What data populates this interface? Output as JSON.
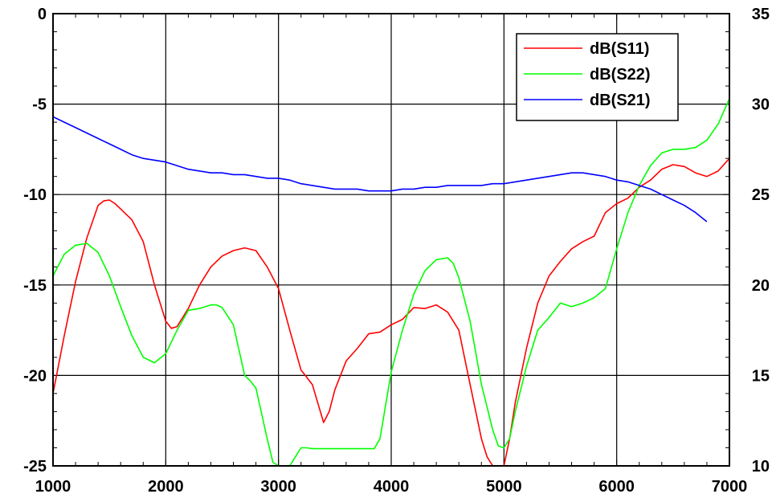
{
  "chart_data": {
    "type": "line",
    "title": "",
    "xlabel": "",
    "ylabel": "",
    "y2label": "",
    "xlim": [
      1000,
      7000
    ],
    "ylim": [
      -25,
      0
    ],
    "y2lim": [
      10,
      35
    ],
    "grid": true,
    "legend_position": "top-right",
    "x_ticks": [
      1000,
      2000,
      3000,
      4000,
      5000,
      6000,
      7000
    ],
    "x_tick_labels": [
      "1000",
      "2000",
      "3000",
      "4000",
      "5000",
      "6000",
      "7000"
    ],
    "y_ticks": [
      0,
      -5,
      -10,
      -15,
      -20,
      -25
    ],
    "y_tick_labels": [
      "0",
      "-5",
      "-10",
      "-15",
      "-20",
      "-25"
    ],
    "y2_ticks": [
      35,
      30,
      25,
      20,
      15,
      10
    ],
    "y2_tick_labels": [
      "35",
      "30",
      "25",
      "20",
      "15",
      "10"
    ],
    "series": [
      {
        "name": "dB(S11)",
        "color": "#ff0000",
        "axis": "left",
        "x": [
          1000,
          1100,
          1200,
          1300,
          1400,
          1450,
          1500,
          1550,
          1600,
          1700,
          1800,
          1900,
          2000,
          2050,
          2100,
          2200,
          2300,
          2400,
          2500,
          2600,
          2700,
          2800,
          2900,
          3000,
          3100,
          3200,
          3300,
          3400,
          3450,
          3500,
          3600,
          3700,
          3800,
          3900,
          4000,
          4100,
          4200,
          4300,
          4400,
          4500,
          4600,
          4700,
          4800,
          4850,
          4900,
          5000,
          5050,
          5100,
          5200,
          5300,
          5400,
          5500,
          5600,
          5700,
          5800,
          5900,
          6000,
          6100,
          6200,
          6300,
          6400,
          6500,
          6600,
          6700,
          6800,
          6900,
          7000
        ],
        "y": [
          -21.0,
          -17.8,
          -14.8,
          -12.4,
          -10.6,
          -10.35,
          -10.3,
          -10.5,
          -10.8,
          -11.4,
          -12.6,
          -15.0,
          -17.0,
          -17.4,
          -17.3,
          -16.3,
          -15.0,
          -14.0,
          -13.4,
          -13.1,
          -12.95,
          -13.1,
          -14.0,
          -15.2,
          -17.5,
          -19.7,
          -20.5,
          -22.6,
          -22.0,
          -20.8,
          -19.2,
          -18.5,
          -17.7,
          -17.6,
          -17.2,
          -16.9,
          -16.25,
          -16.3,
          -16.1,
          -16.5,
          -17.5,
          -20.5,
          -23.5,
          -24.5,
          -25.0,
          -25.0,
          -23.5,
          -21.5,
          -18.5,
          -16.0,
          -14.5,
          -13.7,
          -13.0,
          -12.6,
          -12.3,
          -11.0,
          -10.5,
          -10.2,
          -9.6,
          -9.2,
          -8.6,
          -8.35,
          -8.45,
          -8.8,
          -9.0,
          -8.7,
          -8.0
        ]
      },
      {
        "name": "dB(S22)",
        "color": "#00ff00",
        "axis": "left",
        "x": [
          1000,
          1100,
          1200,
          1300,
          1400,
          1500,
          1600,
          1700,
          1800,
          1900,
          2000,
          2100,
          2200,
          2300,
          2400,
          2450,
          2500,
          2600,
          2700,
          2750,
          2800,
          2900,
          2950,
          3000,
          3050,
          3100,
          3150,
          3200,
          3250,
          3300,
          3400,
          3500,
          3600,
          3700,
          3800,
          3850,
          3900,
          4000,
          4100,
          4200,
          4300,
          4400,
          4500,
          4550,
          4600,
          4700,
          4800,
          4900,
          4950,
          5000,
          5050,
          5100,
          5200,
          5300,
          5400,
          5500,
          5600,
          5700,
          5800,
          5900,
          6000,
          6100,
          6200,
          6300,
          6400,
          6500,
          6600,
          6700,
          6800,
          6900,
          7000
        ],
        "y": [
          -14.5,
          -13.3,
          -12.8,
          -12.7,
          -13.2,
          -14.5,
          -16.2,
          -17.8,
          -19.0,
          -19.3,
          -18.8,
          -17.5,
          -16.4,
          -16.3,
          -16.1,
          -16.1,
          -16.25,
          -17.2,
          -20.0,
          -20.3,
          -20.7,
          -23.5,
          -24.8,
          -25.0,
          -25.0,
          -25.0,
          -24.5,
          -24.0,
          -24.0,
          -24.05,
          -24.05,
          -24.05,
          -24.05,
          -24.05,
          -24.05,
          -24.05,
          -23.5,
          -19.8,
          -17.5,
          -15.5,
          -14.2,
          -13.6,
          -13.5,
          -13.8,
          -14.6,
          -17.0,
          -20.5,
          -23.0,
          -23.9,
          -24.0,
          -23.5,
          -22.0,
          -19.5,
          -17.5,
          -16.8,
          -16.0,
          -16.2,
          -16.0,
          -15.7,
          -15.2,
          -13.0,
          -11.0,
          -9.5,
          -8.4,
          -7.7,
          -7.5,
          -7.5,
          -7.4,
          -7.0,
          -6.1,
          -4.7
        ]
      },
      {
        "name": "dB(S21)",
        "color": "#0000ff",
        "axis": "right",
        "x": [
          1000,
          1100,
          1200,
          1300,
          1400,
          1500,
          1600,
          1700,
          1800,
          1900,
          2000,
          2100,
          2200,
          2300,
          2400,
          2500,
          2600,
          2700,
          2800,
          2900,
          3000,
          3100,
          3200,
          3300,
          3400,
          3500,
          3600,
          3700,
          3800,
          3900,
          4000,
          4100,
          4200,
          4300,
          4400,
          4500,
          4600,
          4700,
          4800,
          4900,
          5000,
          5100,
          5200,
          5300,
          5400,
          5500,
          5600,
          5700,
          5800,
          5900,
          6000,
          6100,
          6200,
          6300,
          6400,
          6500,
          6600,
          6700,
          6800
        ],
        "y": [
          29.3,
          29.0,
          28.7,
          28.4,
          28.1,
          27.8,
          27.5,
          27.2,
          27.0,
          26.9,
          26.8,
          26.6,
          26.4,
          26.3,
          26.2,
          26.2,
          26.1,
          26.1,
          26.0,
          25.9,
          25.9,
          25.8,
          25.6,
          25.5,
          25.4,
          25.3,
          25.3,
          25.3,
          25.2,
          25.2,
          25.2,
          25.3,
          25.3,
          25.4,
          25.4,
          25.5,
          25.5,
          25.5,
          25.5,
          25.6,
          25.6,
          25.7,
          25.8,
          25.9,
          26.0,
          26.1,
          26.2,
          26.2,
          26.1,
          26.0,
          25.8,
          25.7,
          25.5,
          25.3,
          25.0,
          24.7,
          24.4,
          24.0,
          23.5
        ]
      }
    ]
  }
}
